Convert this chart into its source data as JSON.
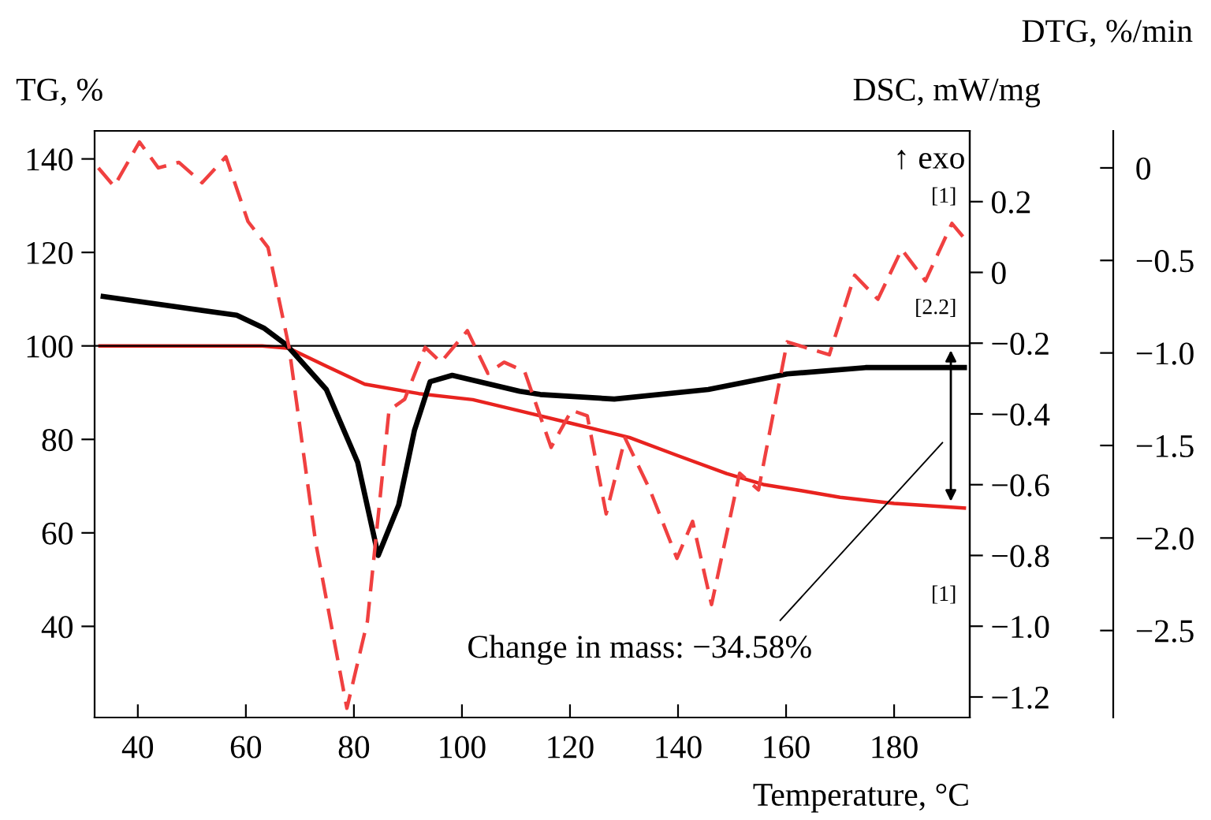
{
  "chart_data": {
    "type": "line",
    "xlabel": "Temperature, °C",
    "ylabel": "TG, %",
    "y2label": "DSC, mW/mg",
    "y3label": "DTG, %/min",
    "xlim": [
      32,
      194
    ],
    "xticks": [
      40,
      60,
      80,
      100,
      120,
      140,
      160,
      180
    ],
    "ylim": [
      20.5,
      146
    ],
    "yticks": [
      40,
      60,
      80,
      100,
      120,
      140
    ],
    "y2lim": [
      -1.258,
      0.4
    ],
    "y2ticks": [
      {
        "value": 0.2,
        "label": "0.2"
      },
      0,
      {
        "value": -0.2,
        "label": "−0.2"
      },
      {
        "value": -0.4,
        "label": "−0.4"
      },
      {
        "value": -0.6,
        "label": "−0.6"
      },
      {
        "value": -0.8,
        "label": "−0.8"
      },
      {
        "value": -1.0,
        "label": "−1.0"
      },
      {
        "value": -1.2,
        "label": "−1.2"
      }
    ],
    "y3lim": [
      -2.97,
      0.2
    ],
    "y3ticks": [
      0,
      {
        "value": -0.5,
        "label": "−0.5"
      },
      {
        "value": -1.0,
        "label": "−1.0"
      },
      {
        "value": -1.5,
        "label": "−1.5"
      },
      {
        "value": -2.0,
        "label": "−2.0"
      },
      {
        "value": -2.5,
        "label": "−2.5"
      }
    ],
    "grid": false,
    "ref_lines": [
      {
        "axis": "y",
        "value": 100,
        "color": "#000000"
      }
    ],
    "series": [
      {
        "color": "#e8231f",
        "line_style": "solid",
        "x": [
          33,
          50,
          63,
          68,
          75,
          82,
          92,
          102,
          111,
          120,
          131,
          140,
          149,
          156,
          163,
          170,
          180,
          193
        ],
        "values": [
          100,
          100,
          100,
          99.5,
          95.6,
          91.8,
          89.8,
          88.5,
          86,
          83.5,
          80.4,
          76.5,
          72.7,
          70.3,
          69,
          67.6,
          66.3,
          65.3
        ]
      },
      {
        "color": "#000000",
        "line_style": "solid",
        "axis": "y2",
        "x": [
          33.6,
          58.3,
          63.3,
          67.6,
          74.9,
          80.7,
          84.5,
          88.3,
          91.2,
          94.1,
          98.2,
          110.7,
          114.5,
          128.2,
          145.6,
          160.2,
          174.7,
          193
        ],
        "values": [
          -0.068,
          -0.121,
          -0.157,
          -0.206,
          -0.331,
          -0.537,
          -0.8,
          -0.657,
          -0.447,
          -0.309,
          -0.291,
          -0.336,
          -0.345,
          -0.358,
          -0.331,
          -0.287,
          -0.269,
          -0.269
        ]
      },
      {
        "color": "#f04040",
        "line_style": "dashed",
        "axis": "y3",
        "x": [
          32.7,
          35.6,
          40.3,
          43.8,
          47.6,
          51.9,
          56.3,
          60.4,
          64.1,
          68,
          72.9,
          78.7,
          82.5,
          86.5,
          89.4,
          93.2,
          96.1,
          101,
          104.8,
          107.8,
          111.6,
          116.5,
          120.3,
          123.2,
          126.7,
          130.2,
          134.8,
          139.8,
          142.7,
          146.2,
          151.4,
          154.9,
          160.2,
          168,
          172.7,
          177,
          181.4,
          185.8,
          190.7,
          193
        ],
        "values": [
          0.0,
          -0.1,
          0.14,
          0.0,
          0.03,
          -0.08,
          0.06,
          -0.29,
          -0.43,
          -0.97,
          -2.02,
          -2.92,
          -2.45,
          -1.31,
          -1.25,
          -0.97,
          -1.05,
          -0.88,
          -1.11,
          -1.05,
          -1.1,
          -1.51,
          -1.31,
          -1.34,
          -1.87,
          -1.46,
          -1.74,
          -2.11,
          -1.91,
          -2.36,
          -1.65,
          -1.74,
          -0.94,
          -1.01,
          -0.58,
          -0.71,
          -0.44,
          -0.61,
          -0.3,
          -0.38
        ]
      }
    ],
    "annotations": [
      "↑ exo",
      "[1]",
      "[2.2]",
      "[1]",
      "Change in mass: −34.58%"
    ]
  }
}
